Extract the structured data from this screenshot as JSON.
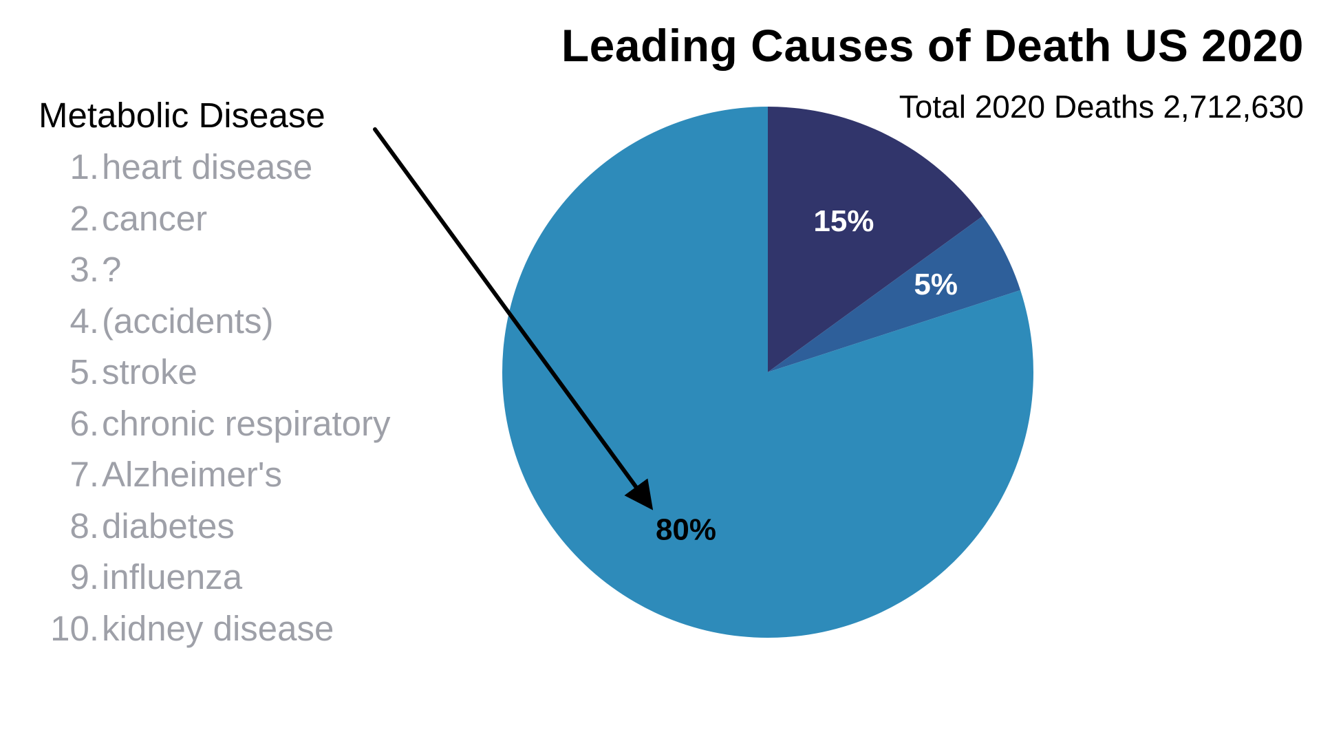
{
  "title": "Leading Causes of Death US 2020",
  "subtitle": "Total 2020 Deaths 2,712,630",
  "legend": {
    "heading": "Metabolic Disease",
    "items": [
      {
        "num": "1.",
        "label": "heart disease"
      },
      {
        "num": "2.",
        "label": "cancer"
      },
      {
        "num": "3.",
        "label": "?"
      },
      {
        "num": "4.",
        "label": "(accidents)"
      },
      {
        "num": "5.",
        "label": "stroke"
      },
      {
        "num": "6.",
        "label": "chronic respiratory"
      },
      {
        "num": "7.",
        "label": "Alzheimer's"
      },
      {
        "num": "8.",
        "label": "diabetes"
      },
      {
        "num": "9.",
        "label": "influenza"
      },
      {
        "num": "10.",
        "label": "kidney disease"
      }
    ]
  },
  "chart_data": {
    "type": "pie",
    "title": "Leading Causes of Death US 2020",
    "subtitle": "Total 2020 Deaths 2,712,630",
    "slices": [
      {
        "label": "15%",
        "value": 15,
        "color": "#31356b",
        "label_color": "#ffffff"
      },
      {
        "label": "5%",
        "value": 5,
        "color": "#2e5f9a",
        "label_color": "#ffffff"
      },
      {
        "label": "80%",
        "value": 80,
        "color": "#2e8bba",
        "label_color": "#000000"
      }
    ],
    "start_angle_deg": 0,
    "direction": "clockwise",
    "annotation": {
      "from": "Metabolic Disease",
      "to": "80%"
    }
  }
}
